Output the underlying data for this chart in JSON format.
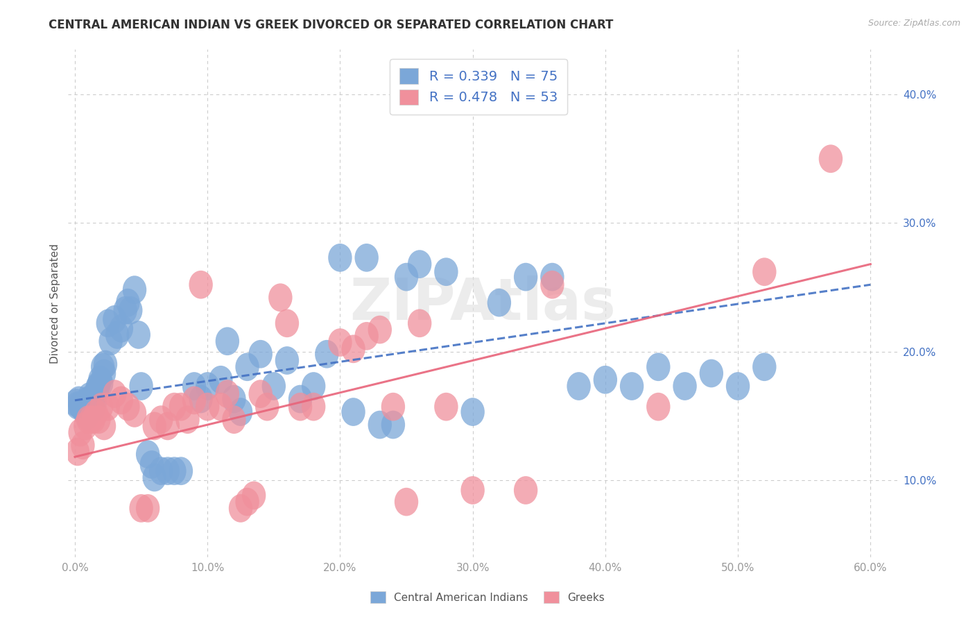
{
  "title": "CENTRAL AMERICAN INDIAN VS GREEK DIVORCED OR SEPARATED CORRELATION CHART",
  "source": "Source: ZipAtlas.com",
  "ylabel": "Divorced or Separated",
  "yticks": [
    0.1,
    0.2,
    0.3,
    0.4
  ],
  "ytick_labels": [
    "10.0%",
    "20.0%",
    "30.0%",
    "40.0%"
  ],
  "xticks": [
    0.0,
    0.1,
    0.2,
    0.3,
    0.4,
    0.5,
    0.6
  ],
  "xtick_labels": [
    "0.0%",
    "10.0%",
    "20.0%",
    "30.0%",
    "40.0%",
    "50.0%",
    "60.0%"
  ],
  "xlim": [
    -0.005,
    0.62
  ],
  "ylim": [
    0.04,
    0.435
  ],
  "blue_color": "#7ba7d8",
  "pink_color": "#f0909c",
  "blue_line_color": "#4472c4",
  "pink_line_color": "#e8647a",
  "legend_blue_R": "0.339",
  "legend_blue_N": "75",
  "legend_pink_R": "0.478",
  "legend_pink_N": "53",
  "watermark": "ZIPAtlas",
  "blue_points": [
    [
      0.001,
      0.16
    ],
    [
      0.002,
      0.158
    ],
    [
      0.003,
      0.162
    ],
    [
      0.004,
      0.158
    ],
    [
      0.005,
      0.157
    ],
    [
      0.006,
      0.156
    ],
    [
      0.007,
      0.155
    ],
    [
      0.008,
      0.153
    ],
    [
      0.009,
      0.15
    ],
    [
      0.01,
      0.162
    ],
    [
      0.011,
      0.165
    ],
    [
      0.012,
      0.163
    ],
    [
      0.013,
      0.157
    ],
    [
      0.014,
      0.156
    ],
    [
      0.015,
      0.16
    ],
    [
      0.016,
      0.168
    ],
    [
      0.017,
      0.172
    ],
    [
      0.018,
      0.174
    ],
    [
      0.019,
      0.178
    ],
    [
      0.02,
      0.175
    ],
    [
      0.021,
      0.188
    ],
    [
      0.022,
      0.183
    ],
    [
      0.023,
      0.19
    ],
    [
      0.025,
      0.222
    ],
    [
      0.027,
      0.208
    ],
    [
      0.03,
      0.225
    ],
    [
      0.032,
      0.213
    ],
    [
      0.035,
      0.218
    ],
    [
      0.038,
      0.232
    ],
    [
      0.04,
      0.238
    ],
    [
      0.042,
      0.232
    ],
    [
      0.045,
      0.248
    ],
    [
      0.048,
      0.213
    ],
    [
      0.05,
      0.173
    ],
    [
      0.055,
      0.12
    ],
    [
      0.058,
      0.112
    ],
    [
      0.06,
      0.102
    ],
    [
      0.065,
      0.107
    ],
    [
      0.07,
      0.107
    ],
    [
      0.075,
      0.107
    ],
    [
      0.08,
      0.107
    ],
    [
      0.09,
      0.173
    ],
    [
      0.095,
      0.163
    ],
    [
      0.1,
      0.173
    ],
    [
      0.11,
      0.178
    ],
    [
      0.115,
      0.208
    ],
    [
      0.12,
      0.163
    ],
    [
      0.125,
      0.153
    ],
    [
      0.13,
      0.188
    ],
    [
      0.14,
      0.198
    ],
    [
      0.15,
      0.173
    ],
    [
      0.16,
      0.193
    ],
    [
      0.17,
      0.163
    ],
    [
      0.18,
      0.173
    ],
    [
      0.19,
      0.198
    ],
    [
      0.2,
      0.273
    ],
    [
      0.21,
      0.153
    ],
    [
      0.22,
      0.273
    ],
    [
      0.23,
      0.143
    ],
    [
      0.24,
      0.143
    ],
    [
      0.25,
      0.258
    ],
    [
      0.26,
      0.268
    ],
    [
      0.28,
      0.262
    ],
    [
      0.3,
      0.153
    ],
    [
      0.32,
      0.238
    ],
    [
      0.34,
      0.258
    ],
    [
      0.36,
      0.258
    ],
    [
      0.38,
      0.173
    ],
    [
      0.4,
      0.178
    ],
    [
      0.42,
      0.173
    ],
    [
      0.44,
      0.188
    ],
    [
      0.46,
      0.173
    ],
    [
      0.48,
      0.183
    ],
    [
      0.5,
      0.173
    ],
    [
      0.52,
      0.188
    ]
  ],
  "pink_points": [
    [
      0.002,
      0.122
    ],
    [
      0.004,
      0.137
    ],
    [
      0.006,
      0.127
    ],
    [
      0.008,
      0.142
    ],
    [
      0.01,
      0.147
    ],
    [
      0.012,
      0.147
    ],
    [
      0.014,
      0.147
    ],
    [
      0.016,
      0.152
    ],
    [
      0.018,
      0.147
    ],
    [
      0.02,
      0.157
    ],
    [
      0.022,
      0.142
    ],
    [
      0.025,
      0.157
    ],
    [
      0.03,
      0.167
    ],
    [
      0.035,
      0.162
    ],
    [
      0.04,
      0.157
    ],
    [
      0.045,
      0.152
    ],
    [
      0.05,
      0.078
    ],
    [
      0.055,
      0.078
    ],
    [
      0.06,
      0.142
    ],
    [
      0.065,
      0.147
    ],
    [
      0.07,
      0.142
    ],
    [
      0.075,
      0.157
    ],
    [
      0.08,
      0.157
    ],
    [
      0.085,
      0.147
    ],
    [
      0.09,
      0.162
    ],
    [
      0.095,
      0.252
    ],
    [
      0.1,
      0.157
    ],
    [
      0.11,
      0.157
    ],
    [
      0.115,
      0.167
    ],
    [
      0.12,
      0.147
    ],
    [
      0.125,
      0.078
    ],
    [
      0.13,
      0.083
    ],
    [
      0.135,
      0.088
    ],
    [
      0.14,
      0.167
    ],
    [
      0.145,
      0.157
    ],
    [
      0.155,
      0.242
    ],
    [
      0.16,
      0.222
    ],
    [
      0.17,
      0.157
    ],
    [
      0.18,
      0.157
    ],
    [
      0.2,
      0.207
    ],
    [
      0.21,
      0.202
    ],
    [
      0.22,
      0.212
    ],
    [
      0.23,
      0.217
    ],
    [
      0.24,
      0.157
    ],
    [
      0.25,
      0.083
    ],
    [
      0.26,
      0.222
    ],
    [
      0.28,
      0.157
    ],
    [
      0.3,
      0.092
    ],
    [
      0.34,
      0.092
    ],
    [
      0.36,
      0.252
    ],
    [
      0.44,
      0.157
    ],
    [
      0.52,
      0.262
    ],
    [
      0.57,
      0.35
    ]
  ],
  "blue_line": {
    "x0": 0.0,
    "y0": 0.162,
    "x1": 0.6,
    "y1": 0.252
  },
  "pink_line": {
    "x0": 0.0,
    "y0": 0.118,
    "x1": 0.6,
    "y1": 0.268
  }
}
